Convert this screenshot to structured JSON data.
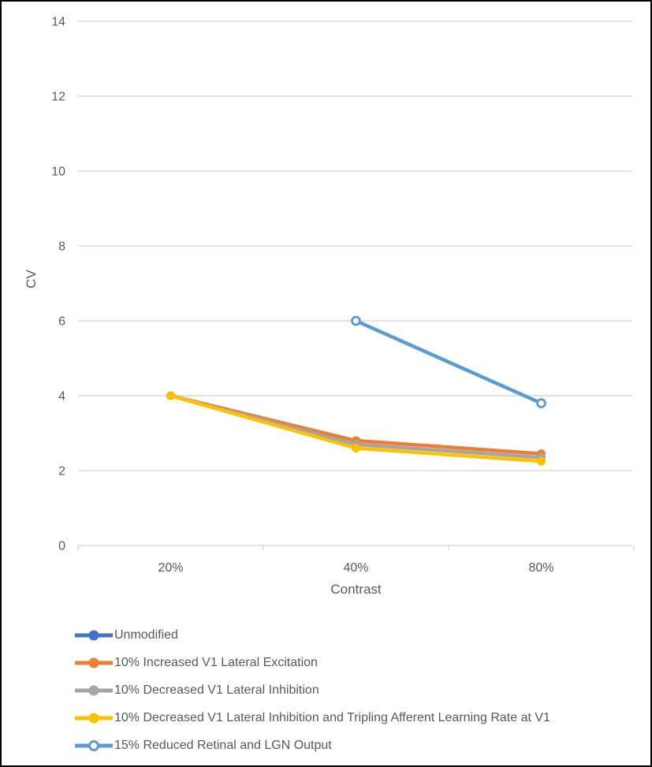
{
  "chart_data": {
    "type": "line",
    "title": "",
    "xlabel": "Contrast",
    "ylabel": "CV",
    "categories": [
      "20%",
      "40%",
      "80%"
    ],
    "y_ticks": [
      0,
      2,
      4,
      6,
      8,
      10,
      12,
      14
    ],
    "ylim": [
      0,
      14
    ],
    "grid": true,
    "legend_position": "bottom-left",
    "axis_color": "#D9D9D9",
    "text_color": "#595959",
    "series": [
      {
        "name": "Unmodified",
        "color": "#4472C4",
        "marker": "filled",
        "values": [
          null,
          null,
          null
        ]
      },
      {
        "name": "10% Increased V1 Lateral Excitation",
        "color": "#ED7D31",
        "marker": "filled",
        "values": [
          4.0,
          2.8,
          2.45
        ]
      },
      {
        "name": "10% Decreased V1 Lateral Inhibition",
        "color": "#A5A5A5",
        "marker": "filled",
        "values": [
          4.0,
          2.7,
          2.35
        ]
      },
      {
        "name": "10% Decreased V1 Lateral Inhibition and Tripling Afferent Learning Rate at V1",
        "color": "#FFC000",
        "marker": "filled",
        "values": [
          4.0,
          2.6,
          2.25
        ]
      },
      {
        "name": "15% Reduced Retinal and LGN Output",
        "color": "#5B9BD5",
        "marker": "open",
        "values": [
          null,
          6.0,
          3.8
        ]
      }
    ]
  }
}
